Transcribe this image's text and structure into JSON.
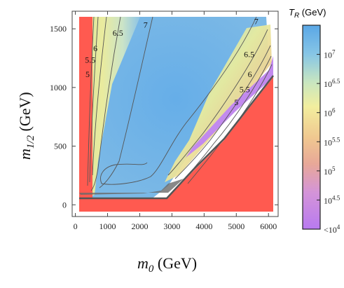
{
  "chart_data": {
    "type": "heatmap",
    "xlabel": "m_0 (GeV)",
    "ylabel": "m_1/2 (GeV)",
    "xlim": [
      -100,
      6300
    ],
    "ylim": [
      -100,
      1650
    ],
    "x_ticks": [
      0,
      1000,
      2000,
      3000,
      4000,
      5000,
      6000
    ],
    "y_ticks": [
      0,
      500,
      1000,
      1500
    ],
    "contour_labels": [
      {
        "text": "7",
        "m0": 2180,
        "m12": 1510
      },
      {
        "text": "6.5",
        "m0": 1320,
        "m12": 1440
      },
      {
        "text": "6",
        "m0": 620,
        "m12": 1310
      },
      {
        "text": "5.5",
        "m0": 460,
        "m12": 1210
      },
      {
        "text": "5",
        "m0": 380,
        "m12": 1090
      },
      {
        "text": "7",
        "m0": 5620,
        "m12": 1540
      },
      {
        "text": "6.5",
        "m0": 5400,
        "m12": 1260
      },
      {
        "text": "6",
        "m0": 5420,
        "m12": 1090
      },
      {
        "text": "5.5",
        "m0": 5260,
        "m12": 960
      },
      {
        "text": "5",
        "m0": 5000,
        "m12": 850
      }
    ],
    "excluded_regions": [
      "red"
    ],
    "colorbar": {
      "title": "T_R (GeV)",
      "scale": "log",
      "range_log10": [
        4,
        7.5
      ],
      "tick_labels": [
        "10^7",
        "10^6.5",
        "10^6",
        "10^5.5",
        "10^5",
        "10^4.5",
        "<10^4"
      ],
      "tick_values_log10": [
        7,
        6.5,
        6,
        5.5,
        5,
        4.5,
        4
      ]
    },
    "colors": {
      "excluded": "#ff5a50",
      "high": "#68aee6",
      "mid": "#f0ee9a",
      "low": "#c08af2"
    }
  }
}
